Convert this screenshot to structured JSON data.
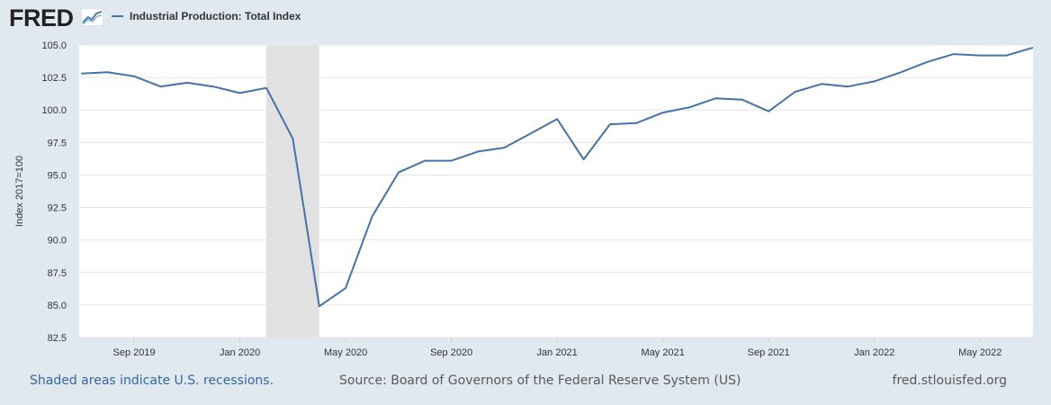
{
  "header": {
    "logo_text": "FRED",
    "legend_label": "Industrial Production: Total Index"
  },
  "footer": {
    "recession_note": "Shaded areas indicate U.S. recessions.",
    "source": "Source: Board of Governors of the Federal Reserve System (US)",
    "site": "fred.stlouisfed.org"
  },
  "colors": {
    "line": "#4572a7",
    "background": "#e1e9f0",
    "plot": "#ffffff",
    "recession": "#e1e1e1",
    "grid": "#e6e6e6"
  },
  "chart_data": {
    "type": "line",
    "title": "",
    "xlabel": "",
    "ylabel": "Index 2017=100",
    "ylim": [
      82.5,
      105.0
    ],
    "yticks": [
      "82.5",
      "85.0",
      "87.5",
      "90.0",
      "92.5",
      "95.0",
      "97.5",
      "100.0",
      "102.5",
      "105.0"
    ],
    "xticks": [
      "Sep 2019",
      "Jan 2020",
      "May 2020",
      "Sep 2020",
      "Jan 2021",
      "May 2021",
      "Sep 2021",
      "Jan 2022",
      "May 2022"
    ],
    "grid": true,
    "recession": {
      "start": "2020-02",
      "end": "2020-04"
    },
    "series": [
      {
        "name": "Industrial Production: Total Index",
        "x": [
          "2019-07",
          "2019-08",
          "2019-09",
          "2019-10",
          "2019-11",
          "2019-12",
          "2020-01",
          "2020-02",
          "2020-03",
          "2020-04",
          "2020-05",
          "2020-06",
          "2020-07",
          "2020-08",
          "2020-09",
          "2020-10",
          "2020-11",
          "2020-12",
          "2021-01",
          "2021-02",
          "2021-03",
          "2021-04",
          "2021-05",
          "2021-06",
          "2021-07",
          "2021-08",
          "2021-09",
          "2021-10",
          "2021-11",
          "2021-12",
          "2022-01",
          "2022-02",
          "2022-03",
          "2022-04",
          "2022-05",
          "2022-06",
          "2022-07"
        ],
        "values": [
          102.8,
          102.9,
          102.6,
          101.8,
          102.1,
          101.8,
          101.3,
          101.7,
          97.8,
          84.9,
          86.3,
          91.8,
          95.2,
          96.1,
          96.1,
          96.8,
          97.1,
          98.2,
          99.3,
          96.2,
          98.9,
          99.0,
          99.8,
          100.2,
          100.9,
          100.8,
          99.9,
          101.4,
          102.0,
          101.8,
          102.2,
          102.9,
          103.7,
          104.3,
          104.2,
          104.2,
          104.8
        ]
      }
    ]
  }
}
